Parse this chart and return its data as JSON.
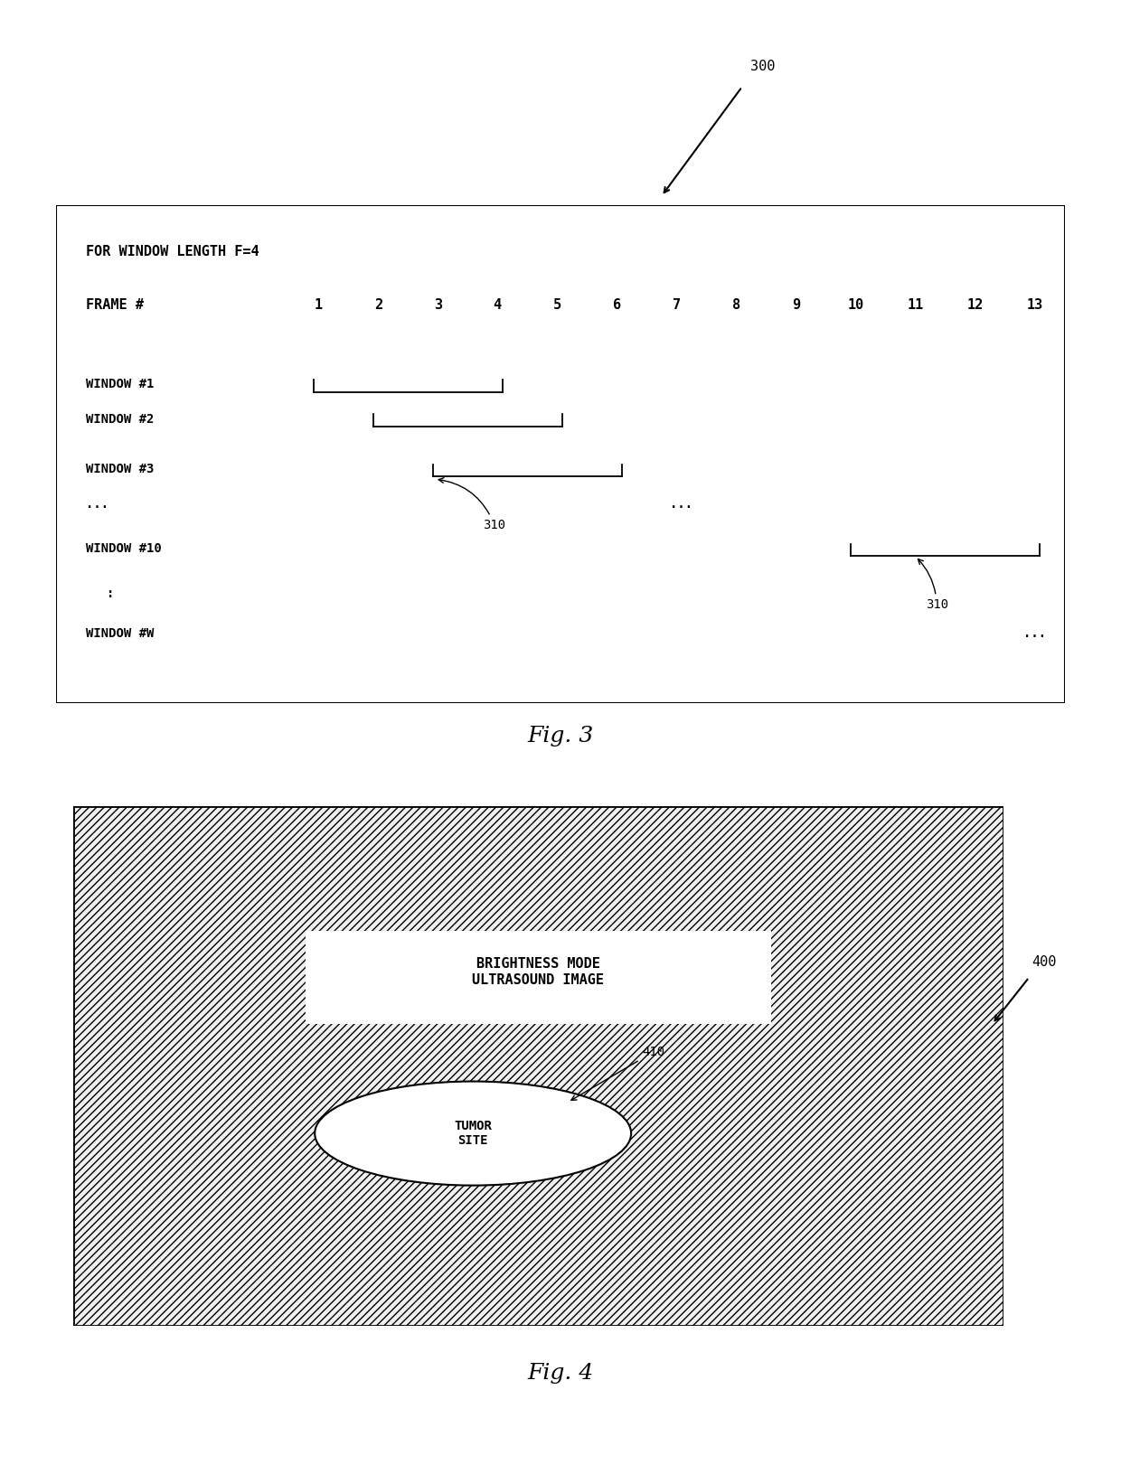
{
  "bg_color": "#ffffff",
  "fig_width": 12.4,
  "fig_height": 16.21,
  "fig3_caption": "Fig. 3",
  "fig4_caption": "Fig. 4",
  "ref300": "300",
  "ref310": "310",
  "ref400": "400",
  "ref410": "410",
  "box_label": "FOR WINDOW LENGTH F=4",
  "frame_label": "FRAME #",
  "frame_numbers": [
    "1",
    "2",
    "3",
    "4",
    "5",
    "6",
    "7",
    "8",
    "9",
    "10",
    "11",
    "12",
    "13"
  ],
  "window_labels": [
    "WINDOW #1",
    "WINDOW #2",
    "WINDOW #3",
    "...",
    "WINDOW #10",
    ":",
    "WINDOW #W"
  ],
  "bm_label": "BRIGHTNESS MODE\nULTRASOUND IMAGE",
  "tumor_label": "TUMOR\nSITE"
}
